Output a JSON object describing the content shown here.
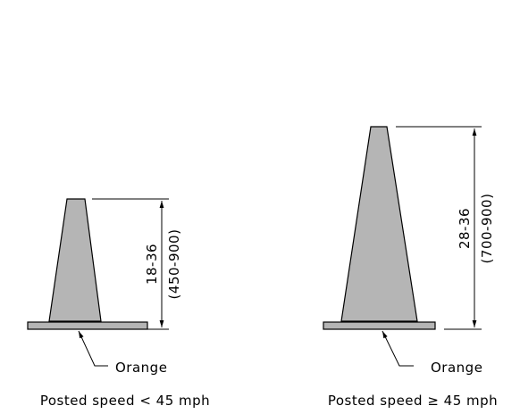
{
  "cones": [
    {
      "height": "18-36",
      "height_metric": "(450-900)",
      "label": "Orange",
      "caption": "Posted speed < 45 mph"
    },
    {
      "height": "28-36",
      "height_metric": "(700-900)",
      "label": "Orange",
      "caption": "Posted speed ≥ 45 mph"
    }
  ]
}
